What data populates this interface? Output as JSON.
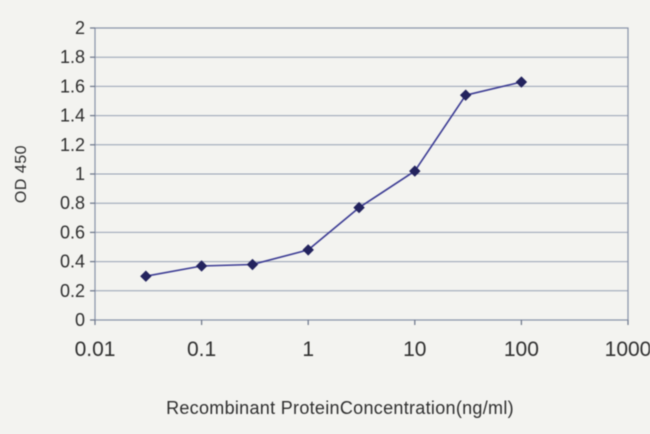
{
  "chart_data": {
    "type": "line",
    "title": "",
    "xlabel": "Recombinant ProteinConcentration(ng/ml)",
    "ylabel": "OD 450",
    "x_scale": "log",
    "xlim": [
      0.01,
      1000
    ],
    "ylim": [
      0,
      2
    ],
    "x_ticks": [
      0.01,
      0.1,
      1,
      10,
      100,
      1000
    ],
    "x_tick_labels": [
      "0.01",
      "0.1",
      "1",
      "10",
      "100",
      "1000"
    ],
    "y_ticks": [
      0,
      0.2,
      0.4,
      0.6,
      0.8,
      1,
      1.2,
      1.4,
      1.6,
      1.8,
      2
    ],
    "y_tick_labels": [
      "0",
      "0.2",
      "0.4",
      "0.6",
      "0.8",
      "1",
      "1.2",
      "1.4",
      "1.6",
      "1.8",
      "2"
    ],
    "grid": "horizontal",
    "legend": "none",
    "series": [
      {
        "name": "OD 450",
        "marker": "diamond",
        "x": [
          0.03,
          0.1,
          0.3,
          1,
          3,
          10,
          30,
          100
        ],
        "y": [
          0.3,
          0.37,
          0.38,
          0.48,
          0.77,
          1.02,
          1.54,
          1.63
        ]
      }
    ],
    "colors": {
      "line": "#3c3c94",
      "marker": "#23235e",
      "grid": "#96a0b4",
      "box": "#8892a8",
      "tick": "#6a7488",
      "text": "#2e2e2e",
      "background": "#f3f3f0"
    }
  }
}
